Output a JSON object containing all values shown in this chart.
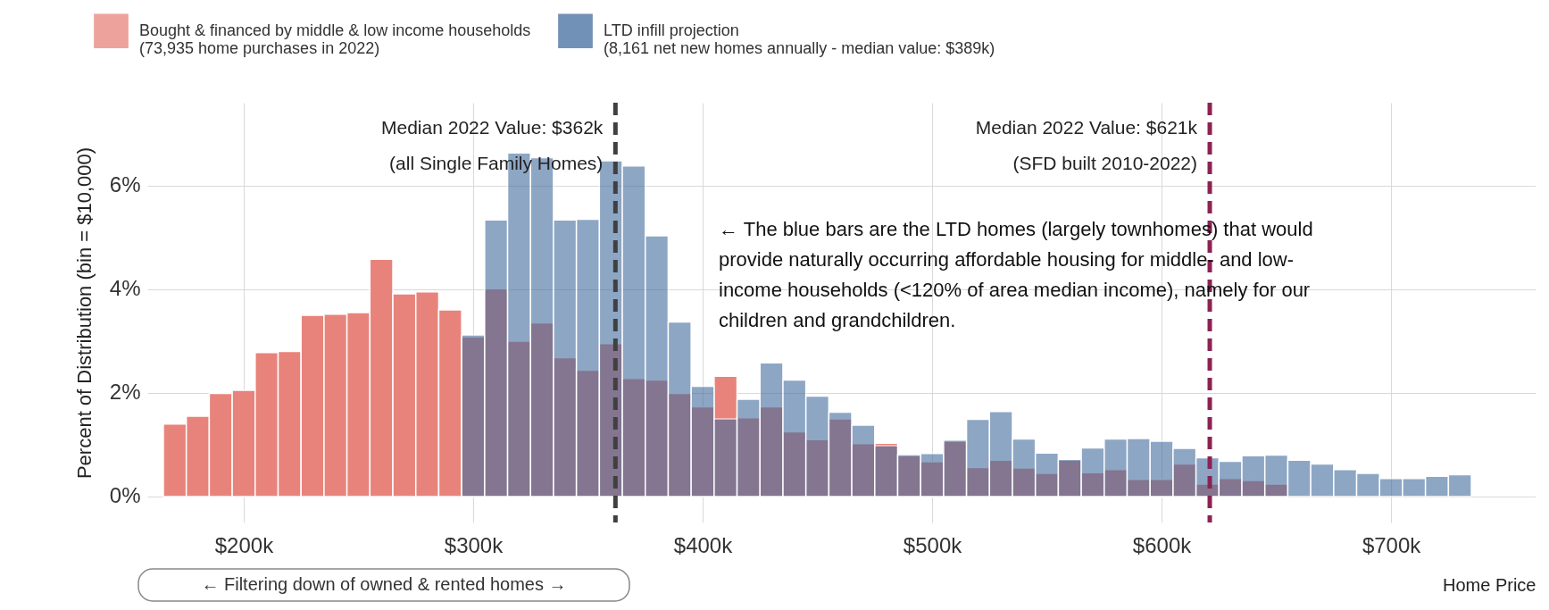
{
  "chart_data": {
    "type": "histogram",
    "xlabel": "Home Price",
    "ylabel": "Percent of Distribution (bin = $10,000)",
    "bins": [
      165,
      175,
      185,
      195,
      205,
      215,
      225,
      235,
      245,
      255,
      265,
      275,
      285,
      295,
      305,
      315,
      325,
      335,
      345,
      355,
      365,
      375,
      385,
      395,
      405,
      415,
      425,
      435,
      445,
      455,
      465,
      475,
      485,
      495,
      505,
      515,
      525,
      535,
      545,
      555,
      565,
      575,
      585,
      595,
      605,
      615,
      625,
      635,
      645,
      655,
      665,
      675,
      685,
      695,
      705,
      715,
      725,
      735
    ],
    "series": [
      {
        "name": "Bought & financed by middle & low income households\n(73,935 home purchases in 2022)",
        "color": "#e8837b",
        "values": [
          1.4,
          1.55,
          1.99,
          2.05,
          2.78,
          2.8,
          3.5,
          3.52,
          3.55,
          4.58,
          3.91,
          3.95,
          3.6,
          3.08,
          4.01,
          3.0,
          3.35,
          2.68,
          2.44,
          2.95,
          2.28,
          2.25,
          1.99,
          1.73,
          2.32,
          1.52,
          1.73,
          1.25,
          1.1,
          1.5,
          1.02,
          1.03,
          0.79,
          0.67,
          1.07,
          0.56,
          0.7,
          0.55,
          0.45,
          0.7,
          0.46,
          0.52,
          0.33,
          0.33,
          0.63,
          0.24,
          0.35,
          0.31,
          0.24,
          null,
          null,
          null,
          null,
          null,
          null,
          null,
          null
        ]
      },
      {
        "name": "LTD infill projection\n(8,161 net new homes annually - median value: $389k)",
        "color": "#436c9e",
        "values": [
          null,
          null,
          null,
          null,
          null,
          null,
          null,
          null,
          null,
          null,
          null,
          null,
          null,
          3.12,
          5.34,
          6.63,
          6.54,
          5.34,
          5.35,
          6.48,
          6.38,
          5.03,
          3.37,
          2.13,
          1.5,
          1.88,
          2.58,
          2.25,
          1.94,
          1.63,
          1.38,
          0.98,
          0.81,
          0.83,
          1.09,
          1.49,
          1.64,
          1.11,
          0.84,
          0.72,
          0.94,
          1.11,
          1.12,
          1.07,
          0.93,
          0.75,
          0.68,
          0.79,
          0.8,
          0.7,
          0.63,
          0.52,
          0.45,
          0.35,
          0.35,
          0.39,
          0.42
        ]
      }
    ],
    "xlim": [
      158,
      763
    ],
    "xticks": [
      {
        "value": 200,
        "label": "$200k"
      },
      {
        "value": 300,
        "label": "$300k"
      },
      {
        "value": 400,
        "label": "$400k"
      },
      {
        "value": 500,
        "label": "$500k"
      },
      {
        "value": 600,
        "label": "$600k"
      },
      {
        "value": 700,
        "label": "$700k"
      }
    ],
    "ylim": [
      -0.5,
      7.6
    ],
    "yticks": [
      {
        "value": 0,
        "label": "0%"
      },
      {
        "value": 2,
        "label": "2%"
      },
      {
        "value": 4,
        "label": "4%"
      },
      {
        "value": 6,
        "label": "6%"
      }
    ],
    "ref_lines": [
      {
        "axis": "x",
        "value": 362,
        "label": "Median 2022 Value: $362k\n(all Single Family Homes)",
        "color": "#404040",
        "line_style": "dashed"
      },
      {
        "axis": "x",
        "value": 621,
        "label": "Median 2022 Value: $621k\n(SFD built 2010-2022)",
        "color": "#8b2252",
        "line_style": "dashed"
      }
    ],
    "annotations": [
      "← The blue bars are the LTD homes (largely townhomes) that would provide naturally occurring affordable housing for middle- and low-income households (<120% of area median income), namely for our children and grandchildren.",
      "←  Filtering down of owned & rented homes  →"
    ],
    "grid": true,
    "legend": "top"
  }
}
